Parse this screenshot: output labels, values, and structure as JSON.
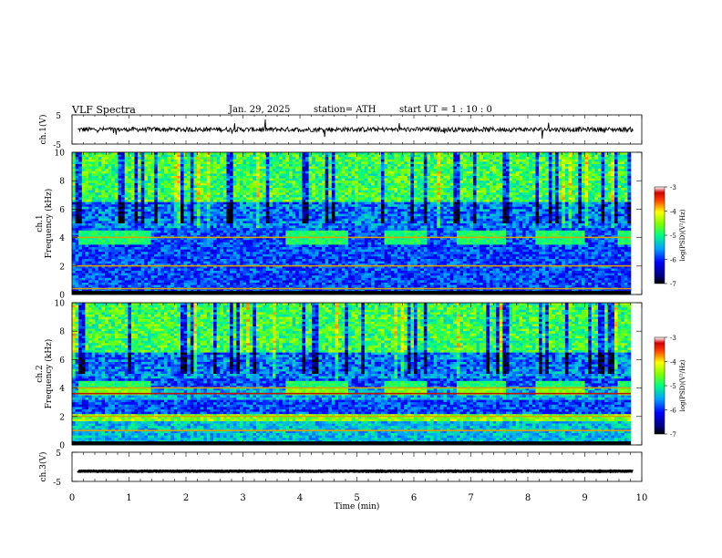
{
  "header": {
    "title": "VLF  Spectra",
    "date": "Jan. 29, 2025",
    "station": "station= ATH",
    "start": "start  UT  =   1 : 10 : 0"
  },
  "chart_data": [
    {
      "type": "line",
      "panel": "ch1-waveform",
      "ylabel": "ch.1(V)",
      "ylim": [
        -5,
        5
      ],
      "yticks": [
        "5",
        "-5"
      ],
      "xlim": [
        0,
        10
      ],
      "series": [
        {
          "baseline": 0,
          "amplitude_typical": 0.8
        }
      ]
    },
    {
      "type": "heatmap",
      "panel": "ch1-spectrogram",
      "ylabel": "ch.1\nFrequency  (kHz)",
      "ylim": [
        0,
        10
      ],
      "yticks": [
        "0",
        "2",
        "4",
        "6",
        "8",
        "10"
      ],
      "xlim": [
        0,
        9.8
      ],
      "bursts_min": [
        [
          0.1,
          1.4
        ],
        [
          3.75,
          4.85
        ],
        [
          5.45,
          6.2
        ],
        [
          6.75,
          7.6
        ],
        [
          8.15,
          9.0
        ],
        [
          9.55,
          9.8
        ]
      ],
      "bands_khz": [
        4.0,
        2.0,
        0.4
      ],
      "colorbar": {
        "label": "log(PSD)(V²/Hz)",
        "ticks": [
          "-3",
          "-4",
          "-5",
          "-6",
          "-7"
        ],
        "range": [
          -7,
          -3
        ]
      }
    },
    {
      "type": "heatmap",
      "panel": "ch2-spectrogram",
      "ylabel": "ch.2\nFrequency  (kHz)",
      "ylim": [
        0,
        10
      ],
      "yticks": [
        "0",
        "2",
        "4",
        "6",
        "8",
        "10"
      ],
      "xlim": [
        0,
        9.8
      ],
      "bursts_min": [
        [
          0.1,
          1.4
        ],
        [
          3.75,
          4.85
        ],
        [
          5.45,
          6.2
        ],
        [
          6.75,
          7.6
        ],
        [
          8.15,
          9.0
        ],
        [
          9.55,
          9.8
        ]
      ],
      "bands_khz": [
        4.0,
        3.6,
        2.0,
        1.0
      ],
      "colorbar": {
        "label": "log(PSD)(V²/Hz)",
        "ticks": [
          "-3",
          "-4",
          "-5",
          "-6",
          "-7"
        ],
        "range": [
          -7,
          -3
        ]
      }
    },
    {
      "type": "line",
      "panel": "ch3-waveform",
      "ylabel": "ch.3(V)",
      "ylim": [
        -5,
        5
      ],
      "yticks": [
        "5",
        "-5"
      ],
      "xlim": [
        0,
        10
      ],
      "series": [
        {
          "baseline": -1.5,
          "amplitude_typical": 0.1
        }
      ]
    }
  ],
  "xaxis": {
    "label": "Time  (min)",
    "ticks": [
      "0",
      "1",
      "2",
      "3",
      "4",
      "5",
      "6",
      "7",
      "8",
      "9",
      "10"
    ],
    "range": [
      0,
      10
    ]
  }
}
